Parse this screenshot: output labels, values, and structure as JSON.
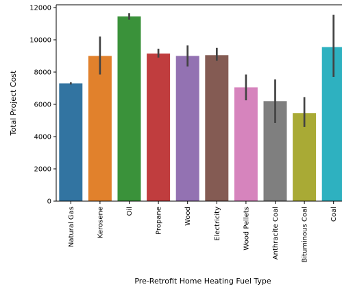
{
  "chart_data": {
    "type": "bar",
    "xlabel": "Pre-Retrofit Home Heating Fuel Type",
    "ylabel": "Total Project Cost",
    "ylim": [
      0,
      12000
    ],
    "yticks": [
      0,
      2000,
      4000,
      6000,
      8000,
      10000,
      12000
    ],
    "grid": false,
    "categories": [
      "Natural Gas",
      "Kerosene",
      "Oil",
      "Propane",
      "Wood",
      "Electricity",
      "Wood Pellets",
      "Anthracite Coal",
      "Bituminous Coal",
      "Coal"
    ],
    "values": [
      7300,
      9000,
      11450,
      9150,
      9000,
      9050,
      7050,
      6200,
      5450,
      9550
    ],
    "error_low": [
      7230,
      7850,
      11250,
      8900,
      8350,
      8700,
      6250,
      4850,
      4600,
      7700
    ],
    "error_high": [
      7370,
      10200,
      11650,
      9450,
      9650,
      9500,
      7850,
      7550,
      6450,
      11550
    ],
    "colors": [
      "#3274a1",
      "#e1812c",
      "#3a923a",
      "#c03d3e",
      "#9372b2",
      "#845b53",
      "#d684bd",
      "#7f7f7f",
      "#a9aa35",
      "#2eb1c0"
    ]
  }
}
